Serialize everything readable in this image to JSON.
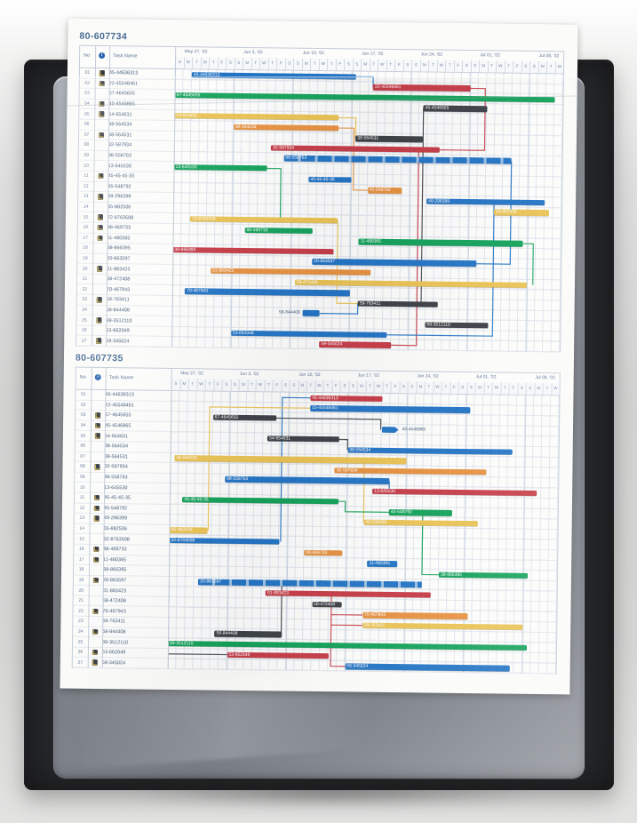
{
  "photo": {
    "background_color": "#d4d4d3",
    "folder_color": "#27282b",
    "sleeve_color": "#82878f",
    "paper_color": "#fbfbf9"
  },
  "palette": {
    "blue": "#2273c4",
    "green": "#12a159",
    "red": "#c63b47",
    "yellow": "#e9c253",
    "orange": "#e69140",
    "dark": "#3c4046",
    "header_text": "#5d7596",
    "title_text": "#4a6d96",
    "task_text": "#3f5878"
  },
  "table_header": {
    "no": "No",
    "info_icon": "i",
    "task_name": "Task Name"
  },
  "chart_data": [
    {
      "type": "gantt",
      "title": "80-607734",
      "x_axis": {
        "weeks": [
          "May 27, '02",
          "Jun 3, '02",
          "Jun 10, '02",
          "Jun 17, '02",
          "Jun 24, '02",
          "Jul 01, '02",
          "Jul 08, '02"
        ],
        "day_letters": [
          "S",
          "M",
          "T",
          "W",
          "T",
          "F",
          "S"
        ],
        "total_day_columns": 46
      },
      "tasks": [
        {
          "no": "01",
          "icon": true,
          "name": "45-44636313",
          "bar": {
            "color": "blue",
            "start": 2,
            "end": 21.5
          }
        },
        {
          "no": "02",
          "icon": true,
          "name": "22-45548461",
          "bar": {
            "color": "red",
            "start": 23.5,
            "end": 35
          }
        },
        {
          "no": "03",
          "icon": false,
          "name": "67-4645655",
          "bar": {
            "color": "green",
            "start": 0,
            "end": 45
          }
        },
        {
          "no": "04",
          "icon": true,
          "name": "45-4546865",
          "bar": {
            "color": "dark",
            "start": 29.5,
            "end": 37
          }
        },
        {
          "no": "05",
          "icon": true,
          "name": "54-654631",
          "bar": {
            "color": "yellow",
            "start": 0,
            "end": 19.5
          }
        },
        {
          "no": "06",
          "icon": false,
          "name": "38-564534",
          "bar": {
            "color": "orange",
            "start": 7,
            "end": 19.5
          }
        },
        {
          "no": "07",
          "icon": true,
          "name": "38-564531",
          "bar": {
            "color": "dark",
            "start": 21.5,
            "end": 29.5
          }
        },
        {
          "no": "08",
          "icon": false,
          "name": "32-587934",
          "bar": {
            "color": "red",
            "start": 11.5,
            "end": 31.5
          }
        },
        {
          "no": "09",
          "icon": false,
          "name": "98-558763",
          "bar": {
            "color": "blue",
            "start": 13,
            "end": 40,
            "split": true
          }
        },
        {
          "no": "10",
          "icon": false,
          "name": "13-645530",
          "bar": {
            "color": "green",
            "start": 0,
            "end": 11
          }
        },
        {
          "no": "11",
          "icon": true,
          "name": "45-45-45-35",
          "bar": {
            "color": "blue",
            "start": 16,
            "end": 21
          }
        },
        {
          "no": "12",
          "icon": false,
          "name": "45-548792",
          "bar": {
            "color": "orange",
            "start": 23,
            "end": 27
          }
        },
        {
          "no": "13",
          "icon": true,
          "name": "49-296399",
          "bar": {
            "color": "blue",
            "start": 30,
            "end": 44
          }
        },
        {
          "no": "14",
          "icon": false,
          "name": "65-882506",
          "bar": {
            "color": "yellow",
            "start": 38,
            "end": 44.5
          }
        },
        {
          "no": "15",
          "icon": true,
          "name": "72-8763508",
          "bar": {
            "color": "yellow",
            "start": 2,
            "end": 19.5
          }
        },
        {
          "no": "16",
          "icon": true,
          "name": "88-469733",
          "bar": {
            "color": "green",
            "start": 8.5,
            "end": 16.5
          }
        },
        {
          "no": "17",
          "icon": true,
          "name": "11-480365",
          "bar": {
            "color": "green",
            "start": 22,
            "end": 41.5
          }
        },
        {
          "no": "18",
          "icon": false,
          "name": "38-866395",
          "bar": {
            "color": "red",
            "start": 0,
            "end": 19
          }
        },
        {
          "no": "19",
          "icon": false,
          "name": "20-863597",
          "bar": {
            "color": "blue",
            "start": 16.5,
            "end": 36
          }
        },
        {
          "no": "20",
          "icon": true,
          "name": "01-883423",
          "bar": {
            "color": "orange",
            "start": 4.5,
            "end": 23.5
          }
        },
        {
          "no": "21",
          "icon": false,
          "name": "58-472408",
          "bar": {
            "color": "yellow",
            "start": 14.5,
            "end": 42
          }
        },
        {
          "no": "22",
          "icon": false,
          "name": "70-467943",
          "bar": {
            "color": "blue",
            "start": 1.5,
            "end": 21
          }
        },
        {
          "no": "23",
          "icon": true,
          "name": "59-763411",
          "bar": {
            "color": "dark",
            "start": 22,
            "end": 31.5
          }
        },
        {
          "no": "24",
          "icon": false,
          "name": "58-844408",
          "bar": {
            "color": "blue",
            "start": 15.5,
            "end": 17.5,
            "label_pos": "left"
          }
        },
        {
          "no": "25",
          "icon": true,
          "name": "89-3512110",
          "bar": {
            "color": "dark",
            "start": 30,
            "end": 37.5
          }
        },
        {
          "no": "26",
          "icon": false,
          "name": "53-662049",
          "bar": {
            "color": "blue",
            "start": 7,
            "end": 25.5
          }
        },
        {
          "no": "27",
          "icon": true,
          "name": "59-345024",
          "bar": {
            "color": "red",
            "start": 17.5,
            "end": 26
          }
        }
      ],
      "connectors": [
        {
          "color": "blue",
          "points": [
            [
              21.5,
              1
            ],
            [
              23.5,
              1
            ],
            [
              23.5,
              2
            ]
          ]
        },
        {
          "color": "red",
          "points": [
            [
              35,
              2
            ],
            [
              36.8,
              2
            ],
            [
              36.8,
              8
            ],
            [
              31.5,
              8
            ]
          ]
        },
        {
          "color": "yellow",
          "points": [
            [
              19.5,
              5
            ],
            [
              21.5,
              5
            ],
            [
              21.5,
              7
            ]
          ]
        },
        {
          "color": "orange",
          "points": [
            [
              19.5,
              6
            ],
            [
              21.3,
              6
            ],
            [
              21.3,
              12
            ],
            [
              23,
              12
            ]
          ]
        },
        {
          "color": "dark",
          "points": [
            [
              29.5,
              4
            ],
            [
              29.5,
              23
            ]
          ]
        },
        {
          "color": "red",
          "points": [
            [
              29,
              8
            ],
            [
              29,
              27
            ],
            [
              26,
              27
            ]
          ]
        },
        {
          "color": "blue",
          "points": [
            [
              40,
              9
            ],
            [
              40,
              19
            ],
            [
              36,
              19
            ]
          ]
        },
        {
          "color": "green",
          "points": [
            [
              11,
              10
            ],
            [
              12.7,
              10
            ],
            [
              12.7,
              15
            ]
          ]
        },
        {
          "color": "blue",
          "points": [
            [
              38,
              13
            ],
            [
              38,
              26
            ],
            [
              25.5,
              26
            ]
          ]
        },
        {
          "color": "green",
          "points": [
            [
              41.5,
              17
            ],
            [
              42.7,
              17
            ],
            [
              42.7,
              21
            ]
          ]
        },
        {
          "color": "yellow",
          "points": [
            [
              19.5,
              15
            ],
            [
              19.5,
              23
            ],
            [
              22,
              23
            ]
          ]
        },
        {
          "color": "blue",
          "points": [
            [
              17.5,
              24
            ],
            [
              22,
              24
            ],
            [
              22,
              23
            ]
          ]
        }
      ]
    },
    {
      "type": "gantt",
      "title": "80-607735",
      "x_axis": {
        "weeks": [
          "May 27, '02",
          "Jun 3, '02",
          "Jun 10, '02",
          "Jun 17, '02",
          "Jun 24, '02",
          "Jul 01, '02",
          "Jul 08, '02"
        ],
        "day_letters": [
          "S",
          "M",
          "T",
          "W",
          "T",
          "F",
          "S"
        ],
        "total_day_columns": 46
      },
      "tasks": [
        {
          "no": "01",
          "icon": false,
          "name": "45-44636313",
          "bar": {
            "color": "red",
            "start": 16.5,
            "end": 25
          }
        },
        {
          "no": "02",
          "icon": false,
          "name": "22-45548461",
          "bar": {
            "color": "blue",
            "start": 16.5,
            "end": 35.5
          }
        },
        {
          "no": "03",
          "icon": true,
          "name": "67-4645655",
          "bar": {
            "color": "dark",
            "start": 5,
            "end": 12.5
          }
        },
        {
          "no": "04",
          "icon": true,
          "name": "45-4546865",
          "bar": {
            "color": "blue",
            "start": 25,
            "end": 27,
            "label_pos": "right",
            "shape": "arrow"
          }
        },
        {
          "no": "05",
          "icon": true,
          "name": "54-654631",
          "bar": {
            "color": "dark",
            "start": 11.5,
            "end": 20
          }
        },
        {
          "no": "06",
          "icon": false,
          "name": "38-564534",
          "bar": {
            "color": "blue",
            "start": 21,
            "end": 40.5
          }
        },
        {
          "no": "07",
          "icon": false,
          "name": "38-564531",
          "bar": {
            "color": "yellow",
            "start": 0.5,
            "end": 28
          }
        },
        {
          "no": "08",
          "icon": true,
          "name": "32-587934",
          "bar": {
            "color": "orange",
            "start": 19.5,
            "end": 37.5
          }
        },
        {
          "no": "09",
          "icon": false,
          "name": "98-558763",
          "bar": {
            "color": "blue",
            "start": 6.5,
            "end": 26
          }
        },
        {
          "no": "10",
          "icon": false,
          "name": "13-645530",
          "bar": {
            "color": "red",
            "start": 24,
            "end": 43.5
          }
        },
        {
          "no": "11",
          "icon": true,
          "name": "45-45-45-35",
          "bar": {
            "color": "green",
            "start": 1.5,
            "end": 20
          }
        },
        {
          "no": "12",
          "icon": true,
          "name": "45-548792",
          "bar": {
            "color": "green",
            "start": 26,
            "end": 33.5
          }
        },
        {
          "no": "13",
          "icon": true,
          "name": "49-296399",
          "bar": {
            "color": "yellow",
            "start": 23,
            "end": 36.5
          }
        },
        {
          "no": "14",
          "icon": false,
          "name": "65-882506",
          "bar": {
            "color": "yellow",
            "start": 0,
            "end": 4.5
          }
        },
        {
          "no": "15",
          "icon": false,
          "name": "32-8763508",
          "bar": {
            "color": "blue",
            "start": 0,
            "end": 13
          }
        },
        {
          "no": "16",
          "icon": true,
          "name": "88-469733",
          "bar": {
            "color": "orange",
            "start": 16,
            "end": 20.5
          }
        },
        {
          "no": "17",
          "icon": true,
          "name": "11-480365",
          "bar": {
            "color": "blue",
            "start": 23.5,
            "end": 27
          }
        },
        {
          "no": "18",
          "icon": false,
          "name": "38-866395",
          "bar": {
            "color": "green",
            "start": 32,
            "end": 42.5
          }
        },
        {
          "no": "19",
          "icon": true,
          "name": "20-863597",
          "bar": {
            "color": "blue",
            "start": 3.5,
            "end": 30,
            "split": true
          }
        },
        {
          "no": "20",
          "icon": false,
          "name": "01-883423",
          "bar": {
            "color": "red",
            "start": 11.5,
            "end": 31
          }
        },
        {
          "no": "21",
          "icon": false,
          "name": "58-472408",
          "bar": {
            "color": "dark",
            "start": 17,
            "end": 20.5
          }
        },
        {
          "no": "22",
          "icon": true,
          "name": "70-467943",
          "bar": {
            "color": "orange",
            "start": 23,
            "end": 35.5
          }
        },
        {
          "no": "23",
          "icon": false,
          "name": "59-763411",
          "bar": {
            "color": "yellow",
            "start": 23,
            "end": 42
          }
        },
        {
          "no": "24",
          "icon": true,
          "name": "58-844408",
          "bar": {
            "color": "dark",
            "start": 5.5,
            "end": 13.5
          }
        },
        {
          "no": "25",
          "icon": false,
          "name": "89-3512110",
          "bar": {
            "color": "green",
            "start": 0,
            "end": 42.5
          }
        },
        {
          "no": "26",
          "icon": true,
          "name": "53-662049",
          "bar": {
            "color": "red",
            "start": 7,
            "end": 19
          }
        },
        {
          "no": "27",
          "icon": true,
          "name": "59-345024",
          "bar": {
            "color": "blue",
            "start": 21,
            "end": 40.5
          }
        }
      ],
      "connectors": [
        {
          "color": "blue",
          "points": [
            [
              13.2,
              15
            ],
            [
              13.2,
              1
            ],
            [
              16.5,
              1
            ]
          ]
        },
        {
          "color": "yellow",
          "points": [
            [
              4.6,
              14
            ],
            [
              4.6,
              2
            ],
            [
              16.5,
              2
            ]
          ]
        },
        {
          "color": "dark",
          "points": [
            [
              12.5,
              3
            ],
            [
              24.9,
              3
            ],
            [
              24.9,
              4
            ]
          ]
        },
        {
          "color": "dark",
          "points": [
            [
              20,
              5
            ],
            [
              21,
              5
            ],
            [
              21,
              6
            ]
          ]
        },
        {
          "color": "yellow",
          "points": [
            [
              23,
              7
            ],
            [
              23,
              13
            ]
          ]
        },
        {
          "color": "blue",
          "points": [
            [
              26,
              9
            ],
            [
              26,
              10
            ],
            [
              24,
              10
            ]
          ]
        },
        {
          "color": "green",
          "points": [
            [
              20,
              11
            ],
            [
              20.8,
              11
            ],
            [
              20.8,
              12
            ],
            [
              26,
              12
            ]
          ]
        },
        {
          "color": "green",
          "points": [
            [
              30,
              12
            ],
            [
              30,
              18
            ],
            [
              32,
              18
            ]
          ]
        },
        {
          "color": "red",
          "points": [
            [
              19.3,
              20
            ],
            [
              19.3,
              27
            ],
            [
              21,
              27
            ]
          ]
        },
        {
          "color": "red",
          "points": [
            [
              19.3,
              22
            ],
            [
              23,
              22
            ]
          ]
        },
        {
          "color": "red",
          "points": [
            [
              19.3,
              23
            ],
            [
              23,
              23
            ]
          ]
        },
        {
          "color": "dark",
          "points": [
            [
              13.4,
              19
            ],
            [
              13.4,
              24
            ]
          ]
        },
        {
          "color": "dark",
          "points": [
            [
              0,
              26
            ],
            [
              7,
              26
            ]
          ]
        }
      ]
    }
  ]
}
